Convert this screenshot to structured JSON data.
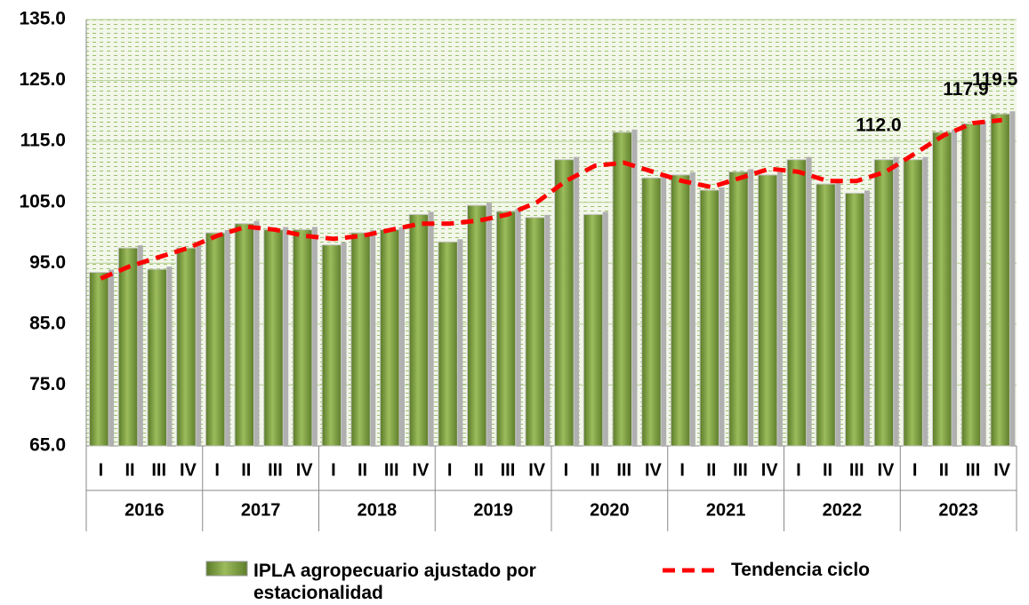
{
  "chart_data": {
    "type": "bar",
    "categories": [
      "I",
      "II",
      "III",
      "IV",
      "I",
      "II",
      "III",
      "IV",
      "I",
      "II",
      "III",
      "IV",
      "I",
      "II",
      "III",
      "IV",
      "I",
      "II",
      "III",
      "IV",
      "I",
      "II",
      "III",
      "IV",
      "I",
      "II",
      "III",
      "IV",
      "I",
      "II",
      "III",
      "IV"
    ],
    "groups": [
      "2016",
      "2017",
      "2018",
      "2019",
      "2020",
      "2021",
      "2022",
      "2023"
    ],
    "series": [
      {
        "name": "IPLA agropecuario ajustado por estacionalidad",
        "type": "bar",
        "color": "#7a9a3a",
        "values": [
          93.5,
          97.5,
          94,
          97.5,
          100,
          101.5,
          100.5,
          100.5,
          98,
          100,
          100.5,
          103,
          98.5,
          104.5,
          103.5,
          102.5,
          112,
          103,
          116.5,
          109,
          109.5,
          107,
          110,
          109.5,
          112,
          108,
          106.5,
          112,
          112,
          116.5,
          117.9,
          119.5
        ],
        "value_labels": [
          null,
          null,
          null,
          null,
          null,
          null,
          null,
          null,
          null,
          null,
          null,
          null,
          null,
          null,
          null,
          null,
          null,
          null,
          null,
          null,
          null,
          null,
          null,
          null,
          null,
          null,
          null,
          "112.0",
          null,
          null,
          "117.9",
          "119.5"
        ]
      },
      {
        "name": "Tendencia ciclo",
        "type": "line",
        "color": "#ff0000",
        "values": [
          92.5,
          94.5,
          96,
          97.5,
          99.5,
          101,
          100.5,
          99.5,
          99,
          99.5,
          100.5,
          101.5,
          101.5,
          102,
          103,
          105,
          108.5,
          111,
          111.5,
          110,
          108.5,
          107.5,
          109,
          110.5,
          110,
          108.5,
          108.5,
          110,
          113,
          116,
          118,
          118.5
        ]
      }
    ],
    "ylim": [
      65,
      135
    ],
    "yticks": [
      {
        "value": 65,
        "label": "65.0"
      },
      {
        "value": 75,
        "label": "75.0"
      },
      {
        "value": 85,
        "label": "85.0"
      },
      {
        "value": 95,
        "label": "95.0"
      },
      {
        "value": 105,
        "label": "105.0"
      },
      {
        "value": 115,
        "label": "115.0"
      },
      {
        "value": 125,
        "label": "125.0"
      },
      {
        "value": 135,
        "label": "135.0"
      }
    ],
    "grid": true
  }
}
